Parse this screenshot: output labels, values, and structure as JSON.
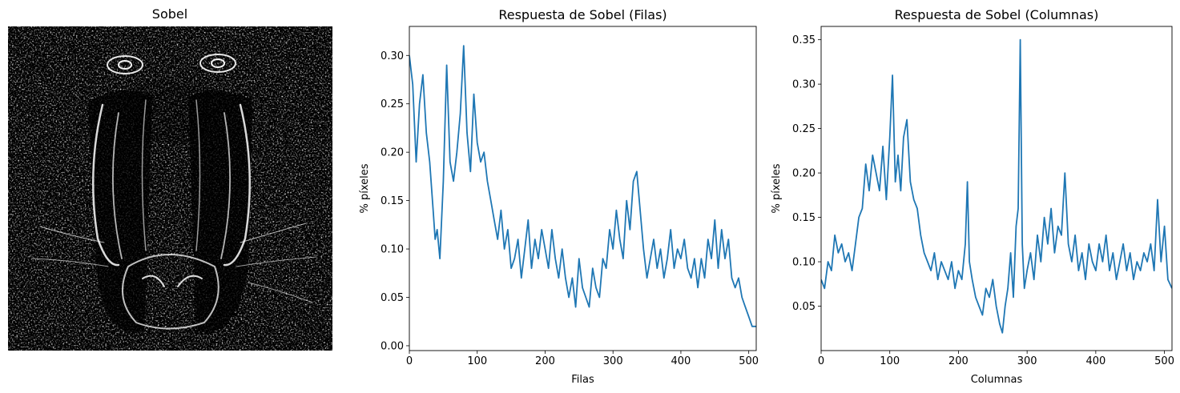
{
  "figure": {
    "image_panel": {
      "title": "Sobel",
      "description": "Sobel edge-magnitude image of a mandrill face"
    },
    "colors": {
      "line": "#1f77b4",
      "axes": "#000000",
      "background": "#ffffff"
    }
  },
  "chart_data": [
    {
      "type": "line",
      "title": "Respuesta de Sobel (Filas)",
      "xlabel": "Filas",
      "ylabel": "% píxeles",
      "xlim": [
        0,
        511
      ],
      "ylim": [
        -0.005,
        0.33
      ],
      "xticks": [
        0,
        100,
        200,
        300,
        400,
        500
      ],
      "yticks": [
        0.0,
        0.05,
        0.1,
        0.15,
        0.2,
        0.25,
        0.3
      ],
      "ytick_labels": [
        "0.00",
        "0.05",
        "0.10",
        "0.15",
        "0.20",
        "0.25",
        "0.30"
      ],
      "grid": false,
      "series": [
        {
          "x": [
            0,
            5,
            10,
            15,
            20,
            25,
            30,
            35,
            38,
            41,
            45,
            50,
            55,
            60,
            65,
            70,
            75,
            80,
            85,
            90,
            95,
            100,
            105,
            110,
            115,
            120,
            125,
            130,
            135,
            140,
            145,
            150,
            155,
            160,
            165,
            170,
            175,
            180,
            185,
            190,
            195,
            200,
            205,
            210,
            215,
            220,
            225,
            230,
            235,
            240,
            245,
            250,
            255,
            260,
            265,
            270,
            275,
            280,
            285,
            290,
            295,
            300,
            305,
            310,
            315,
            320,
            325,
            330,
            335,
            340,
            345,
            350,
            355,
            360,
            365,
            370,
            375,
            380,
            385,
            390,
            395,
            400,
            405,
            410,
            415,
            420,
            425,
            430,
            435,
            440,
            445,
            450,
            455,
            460,
            465,
            470,
            475,
            480,
            485,
            490,
            495,
            500,
            505,
            511
          ],
          "y": [
            0.3,
            0.27,
            0.19,
            0.25,
            0.28,
            0.22,
            0.19,
            0.14,
            0.11,
            0.12,
            0.09,
            0.17,
            0.29,
            0.19,
            0.17,
            0.2,
            0.24,
            0.31,
            0.22,
            0.18,
            0.26,
            0.21,
            0.19,
            0.2,
            0.17,
            0.15,
            0.13,
            0.11,
            0.14,
            0.1,
            0.12,
            0.08,
            0.09,
            0.11,
            0.07,
            0.1,
            0.13,
            0.08,
            0.11,
            0.09,
            0.12,
            0.1,
            0.08,
            0.12,
            0.09,
            0.07,
            0.1,
            0.07,
            0.05,
            0.07,
            0.04,
            0.09,
            0.06,
            0.05,
            0.04,
            0.08,
            0.06,
            0.05,
            0.09,
            0.08,
            0.12,
            0.1,
            0.14,
            0.11,
            0.09,
            0.15,
            0.12,
            0.17,
            0.18,
            0.14,
            0.1,
            0.07,
            0.09,
            0.11,
            0.08,
            0.1,
            0.07,
            0.09,
            0.12,
            0.08,
            0.1,
            0.09,
            0.11,
            0.08,
            0.07,
            0.09,
            0.06,
            0.09,
            0.07,
            0.11,
            0.09,
            0.13,
            0.08,
            0.12,
            0.09,
            0.11,
            0.07,
            0.06,
            0.07,
            0.05,
            0.04,
            0.03,
            0.02,
            0.02
          ]
        }
      ]
    },
    {
      "type": "line",
      "title": "Respuesta de Sobel (Columnas)",
      "xlabel": "Columnas",
      "ylabel": "% píxeles",
      "xlim": [
        0,
        511
      ],
      "ylim": [
        0,
        0.365
      ],
      "xticks": [
        0,
        100,
        200,
        300,
        400,
        500
      ],
      "yticks": [
        0.05,
        0.1,
        0.15,
        0.2,
        0.25,
        0.3,
        0.35
      ],
      "ytick_labels": [
        "0.05",
        "0.10",
        "0.15",
        "0.20",
        "0.25",
        "0.30",
        "0.35"
      ],
      "grid": false,
      "series": [
        {
          "x": [
            0,
            5,
            10,
            15,
            20,
            25,
            30,
            35,
            40,
            45,
            50,
            55,
            60,
            65,
            70,
            75,
            80,
            85,
            90,
            95,
            100,
            104,
            108,
            112,
            116,
            120,
            125,
            130,
            135,
            140,
            145,
            150,
            155,
            160,
            165,
            170,
            175,
            180,
            185,
            190,
            195,
            200,
            205,
            210,
            213,
            216,
            220,
            225,
            230,
            235,
            240,
            245,
            250,
            255,
            260,
            264,
            268,
            272,
            276,
            280,
            284,
            287,
            290,
            293,
            296,
            300,
            305,
            310,
            315,
            320,
            325,
            330,
            335,
            340,
            345,
            350,
            355,
            360,
            365,
            370,
            375,
            380,
            385,
            390,
            395,
            400,
            405,
            410,
            415,
            420,
            425,
            430,
            435,
            440,
            445,
            450,
            455,
            460,
            465,
            470,
            475,
            480,
            485,
            490,
            495,
            500,
            505,
            511
          ],
          "y": [
            0.08,
            0.07,
            0.1,
            0.09,
            0.13,
            0.11,
            0.12,
            0.1,
            0.11,
            0.09,
            0.12,
            0.15,
            0.16,
            0.21,
            0.18,
            0.22,
            0.2,
            0.18,
            0.23,
            0.17,
            0.24,
            0.31,
            0.19,
            0.22,
            0.18,
            0.24,
            0.26,
            0.19,
            0.17,
            0.16,
            0.13,
            0.11,
            0.1,
            0.09,
            0.11,
            0.08,
            0.1,
            0.09,
            0.08,
            0.1,
            0.07,
            0.09,
            0.08,
            0.12,
            0.19,
            0.1,
            0.08,
            0.06,
            0.05,
            0.04,
            0.07,
            0.06,
            0.08,
            0.05,
            0.03,
            0.02,
            0.05,
            0.07,
            0.11,
            0.06,
            0.14,
            0.16,
            0.35,
            0.12,
            0.07,
            0.09,
            0.11,
            0.08,
            0.13,
            0.1,
            0.15,
            0.12,
            0.16,
            0.11,
            0.14,
            0.13,
            0.2,
            0.12,
            0.1,
            0.13,
            0.09,
            0.11,
            0.08,
            0.12,
            0.1,
            0.09,
            0.12,
            0.1,
            0.13,
            0.09,
            0.11,
            0.08,
            0.1,
            0.12,
            0.09,
            0.11,
            0.08,
            0.1,
            0.09,
            0.11,
            0.1,
            0.12,
            0.09,
            0.17,
            0.1,
            0.14,
            0.08,
            0.07
          ]
        }
      ]
    }
  ]
}
